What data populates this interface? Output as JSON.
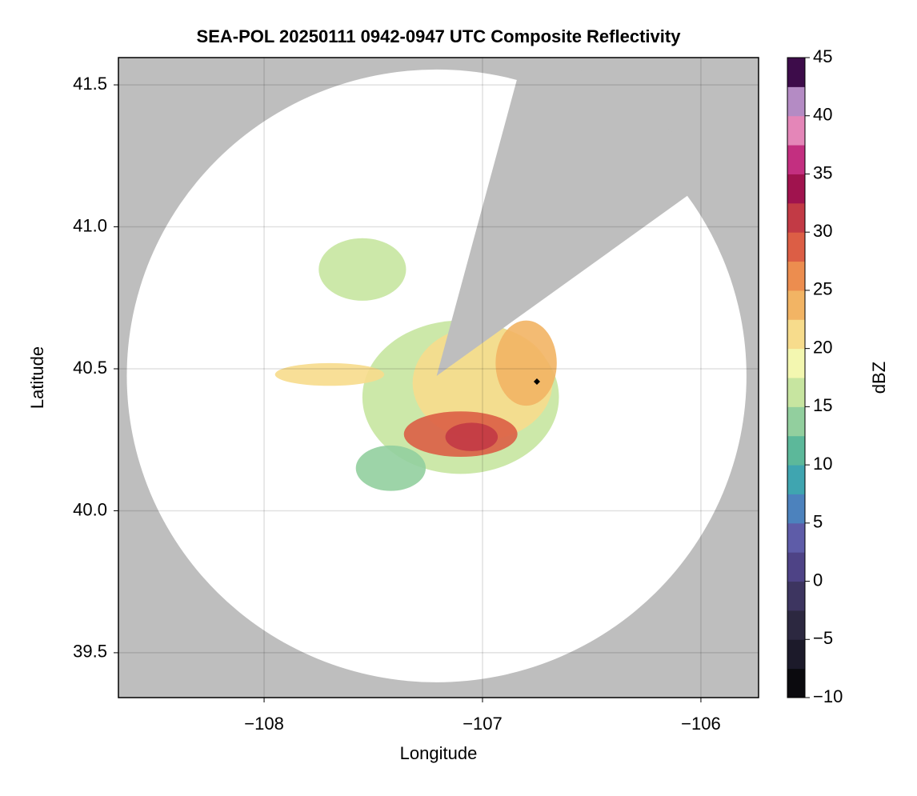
{
  "chart_data": {
    "type": "radar_map",
    "title": "SEA-POL 20250111 0942-0947 UTC Composite Reflectivity",
    "xlabel": "Longitude",
    "ylabel": "Latitude",
    "xlim": [
      -108.667,
      -105.736
    ],
    "ylim": [
      39.342,
      41.596
    ],
    "xticks": [
      {
        "value": -108,
        "label": "−108"
      },
      {
        "value": -107,
        "label": "−107"
      },
      {
        "value": -106,
        "label": "−106"
      }
    ],
    "yticks": [
      {
        "value": 39.5,
        "label": "39.5"
      },
      {
        "value": 40.0,
        "label": "40.0"
      },
      {
        "value": 40.5,
        "label": "40.5"
      },
      {
        "value": 41.0,
        "label": "41.0"
      },
      {
        "value": 41.5,
        "label": "41.5"
      }
    ],
    "grid": true,
    "background_color": "#bebebe",
    "radar": {
      "lon": -107.21,
      "lat": 40.475,
      "max_range_km": 120,
      "blocked_azimuth": [
        15,
        54
      ]
    },
    "marker": {
      "lon": -106.751,
      "lat": 40.455,
      "color": "#000000"
    },
    "echoes": [
      {
        "lon": -107.1,
        "lat": 40.4,
        "rx": 0.45,
        "ry": 0.27,
        "dbz": 16
      },
      {
        "lon": -107.55,
        "lat": 40.85,
        "rx": 0.2,
        "ry": 0.11,
        "dbz": 16
      },
      {
        "lon": -107.7,
        "lat": 40.48,
        "rx": 0.25,
        "ry": 0.04,
        "dbz": 20
      },
      {
        "lon": -107.42,
        "lat": 40.15,
        "rx": 0.16,
        "ry": 0.08,
        "dbz": 14
      },
      {
        "lon": -107.0,
        "lat": 40.45,
        "rx": 0.32,
        "ry": 0.2,
        "dbz": 22
      },
      {
        "lon": -106.8,
        "lat": 40.52,
        "rx": 0.14,
        "ry": 0.15,
        "dbz": 23
      },
      {
        "lon": -107.1,
        "lat": 40.27,
        "rx": 0.26,
        "ry": 0.08,
        "dbz": 29
      },
      {
        "lon": -107.05,
        "lat": 40.26,
        "rx": 0.12,
        "ry": 0.05,
        "dbz": 32
      }
    ],
    "colorbar": {
      "label": "dBZ",
      "clim": [
        -10,
        45
      ],
      "ticks": [
        {
          "value": -10,
          "label": "−10"
        },
        {
          "value": -5,
          "label": "−5"
        },
        0,
        5,
        10,
        15,
        20,
        25,
        30,
        35,
        40,
        45
      ],
      "colors": [
        "#0b0a0e",
        "#1c1a2a",
        "#2c2840",
        "#3d3560",
        "#4e4386",
        "#5e5ca8",
        "#4c82bd",
        "#3fa5b0",
        "#5cb89a",
        "#92cf9e",
        "#c7e5a0",
        "#f3f7b0",
        "#f7dc8c",
        "#f2b464",
        "#ec8d4f",
        "#dc5e45",
        "#c23a45",
        "#a0134e",
        "#c32f80",
        "#e486b8",
        "#b48bc4",
        "#3d0c4a"
      ]
    }
  }
}
